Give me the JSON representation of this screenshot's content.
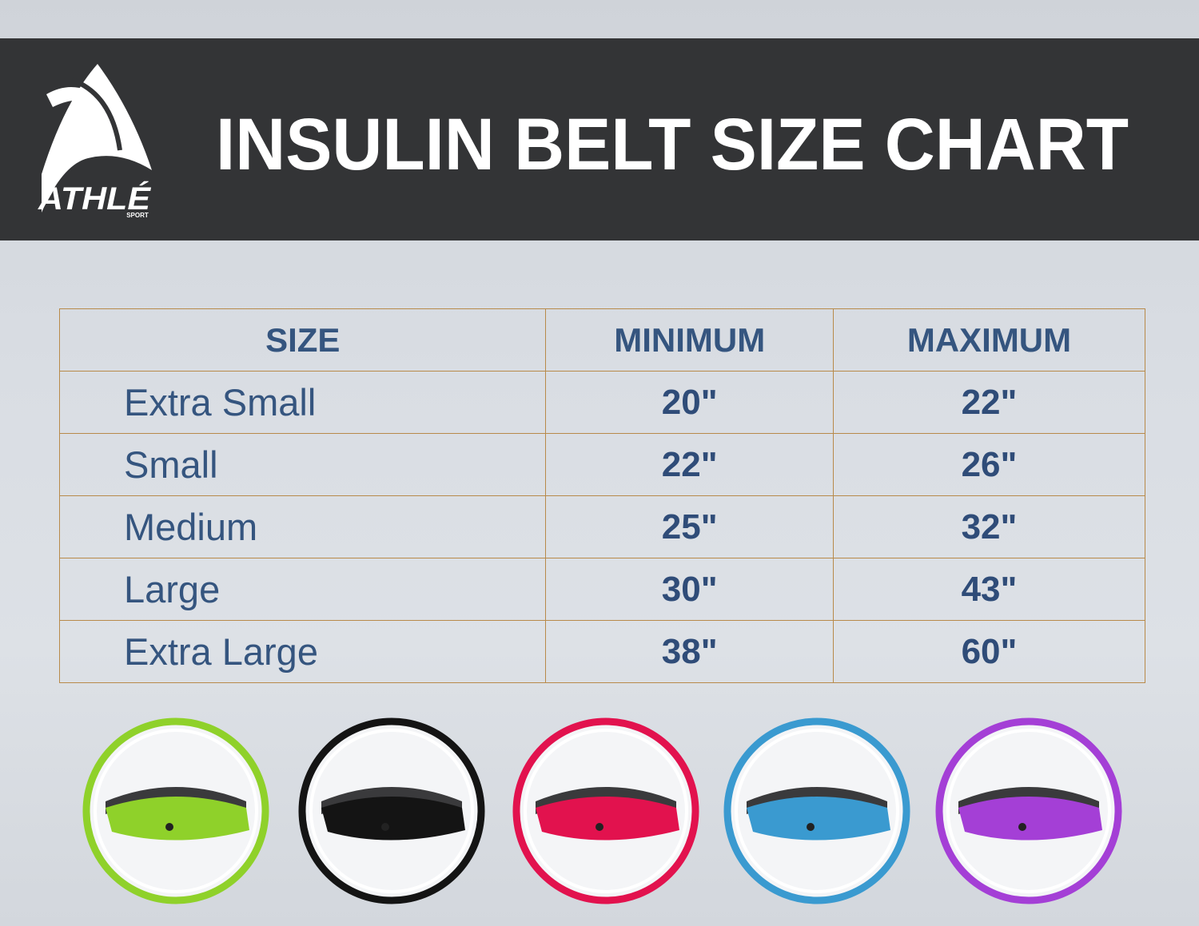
{
  "header": {
    "brand": "ATHLÉ",
    "brand_sub": "SPORT",
    "title": "INSULIN BELT SIZE CHART"
  },
  "table": {
    "columns": [
      "SIZE",
      "MINIMUM",
      "MAXIMUM"
    ],
    "rows": [
      [
        "Extra Small",
        "20\"",
        "22\""
      ],
      [
        "Small",
        "22\"",
        "26\""
      ],
      [
        "Medium",
        "25\"",
        "32\""
      ],
      [
        "Large",
        "30\"",
        "43\""
      ],
      [
        "Extra Large",
        "38\"",
        "60\""
      ]
    ]
  }
}
